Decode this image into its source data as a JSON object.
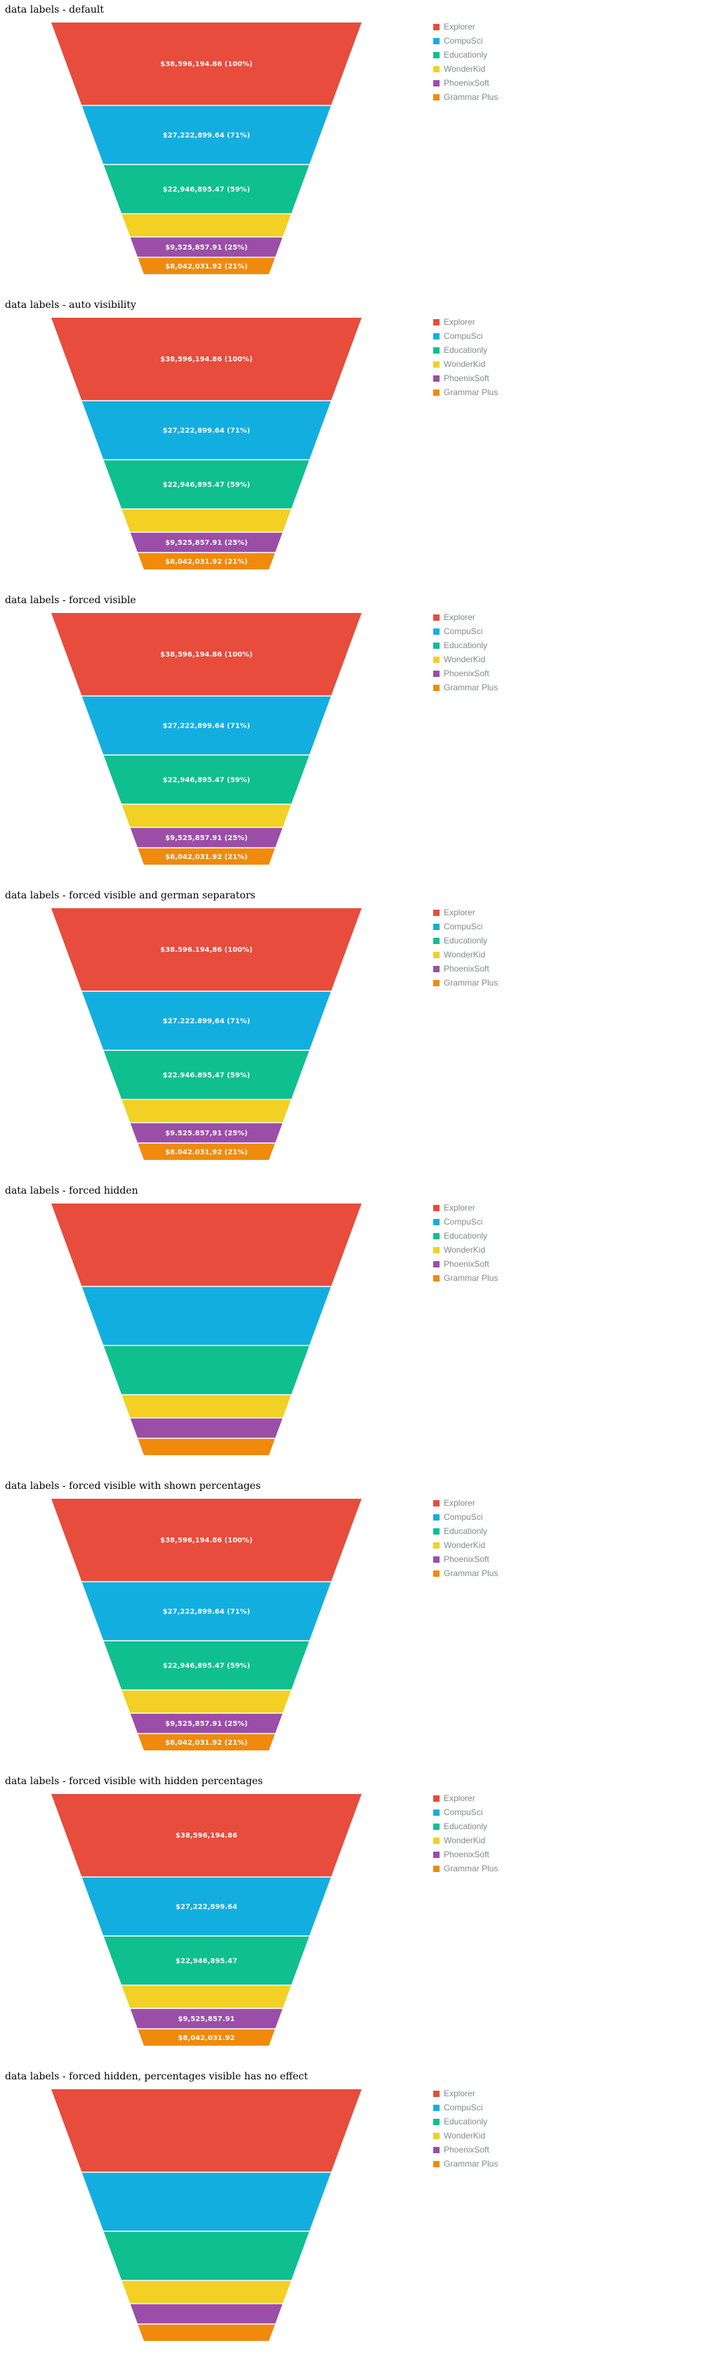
{
  "colors": [
    "#e74c3c",
    "#13aee0",
    "#0fbf8f",
    "#f2d024",
    "#9b4ea7",
    "#f08a0c"
  ],
  "label_color": "#f7f7f7",
  "chart_data": [
    {
      "type": "funnel",
      "title": "data labels - default",
      "labels_visible": true,
      "percentages_visible": true,
      "separators": "en",
      "categories": [
        "Explorer",
        "CompuSci",
        "Educationly",
        "WonderKid",
        "PhoenixSoft",
        "Grammar Plus"
      ],
      "values": [
        38596194.86,
        27222899.64,
        22946895.47,
        12150000,
        9525857.91,
        8042031.92
      ],
      "labels": [
        "$38,596,194.86 (100%)",
        "$27,222,899.64 (71%)",
        "$22,946,895.47 (59%)",
        "",
        "$9,525,857.91 (25%)",
        "$8,042,031.92 (21%)"
      ],
      "legend": [
        "Explorer",
        "CompuSci",
        "Educationly",
        "WonderKid",
        "PhoenixSoft",
        "Grammar Plus"
      ]
    },
    {
      "type": "funnel",
      "title": "data labels - auto visibility",
      "labels_visible": true,
      "percentages_visible": true,
      "separators": "en",
      "categories": [
        "Explorer",
        "CompuSci",
        "Educationly",
        "WonderKid",
        "PhoenixSoft",
        "Grammar Plus"
      ],
      "values": [
        38596194.86,
        27222899.64,
        22946895.47,
        12150000,
        9525857.91,
        8042031.92
      ],
      "labels": [
        "$38,596,194.86 (100%)",
        "$27,222,899.64 (71%)",
        "$22,946,895.47 (59%)",
        "",
        "$9,525,857.91 (25%)",
        "$8,042,031.92 (21%)"
      ],
      "legend": [
        "Explorer",
        "CompuSci",
        "Educationly",
        "WonderKid",
        "PhoenixSoft",
        "Grammar Plus"
      ]
    },
    {
      "type": "funnel",
      "title": "data labels - forced visible",
      "labels_visible": true,
      "percentages_visible": true,
      "separators": "en",
      "categories": [
        "Explorer",
        "CompuSci",
        "Educationly",
        "WonderKid",
        "PhoenixSoft",
        "Grammar Plus"
      ],
      "values": [
        38596194.86,
        27222899.64,
        22946895.47,
        12150000,
        9525857.91,
        8042031.92
      ],
      "labels": [
        "$38,596,194.86 (100%)",
        "$27,222,899.64 (71%)",
        "$22,946,895.47 (59%)",
        "",
        "$9,525,857.91 (25%)",
        "$8,042,031.92 (21%)"
      ],
      "legend": [
        "Explorer",
        "CompuSci",
        "Educationly",
        "WonderKid",
        "PhoenixSoft",
        "Grammar Plus"
      ]
    },
    {
      "type": "funnel",
      "title": "data labels - forced visible and german separators",
      "labels_visible": true,
      "percentages_visible": true,
      "separators": "de",
      "categories": [
        "Explorer",
        "CompuSci",
        "Educationly",
        "WonderKid",
        "PhoenixSoft",
        "Grammar Plus"
      ],
      "values": [
        38596194.86,
        27222899.64,
        22946895.47,
        12150000,
        9525857.91,
        8042031.92
      ],
      "labels": [
        "$38.596.194,86 (100%)",
        "$27.222.899,64 (71%)",
        "$22.946.895,47 (59%)",
        "",
        "$9.525.857,91 (25%)",
        "$8.042.031,92 (21%)"
      ],
      "legend": [
        "Explorer",
        "CompuSci",
        "Educationly",
        "WonderKid",
        "PhoenixSoft",
        "Grammar Plus"
      ]
    },
    {
      "type": "funnel",
      "title": "data labels - forced hidden",
      "labels_visible": false,
      "percentages_visible": true,
      "separators": "en",
      "categories": [
        "Explorer",
        "CompuSci",
        "Educationly",
        "WonderKid",
        "PhoenixSoft",
        "Grammar Plus"
      ],
      "values": [
        38596194.86,
        27222899.64,
        22946895.47,
        12150000,
        9525857.91,
        8042031.92
      ],
      "labels": [
        "",
        "",
        "",
        "",
        "",
        ""
      ],
      "legend": [
        "Explorer",
        "CompuSci",
        "Educationly",
        "WonderKid",
        "PhoenixSoft",
        "Grammar Plus"
      ]
    },
    {
      "type": "funnel",
      "title": "data labels - forced visible with shown percentages",
      "labels_visible": true,
      "percentages_visible": true,
      "separators": "en",
      "categories": [
        "Explorer",
        "CompuSci",
        "Educationly",
        "WonderKid",
        "PhoenixSoft",
        "Grammar Plus"
      ],
      "values": [
        38596194.86,
        27222899.64,
        22946895.47,
        12150000,
        9525857.91,
        8042031.92
      ],
      "labels": [
        "$38,596,194.86 (100%)",
        "$27,222,899.64 (71%)",
        "$22,946,895.47 (59%)",
        "",
        "$9,525,857.91 (25%)",
        "$8,042,031.92 (21%)"
      ],
      "legend": [
        "Explorer",
        "CompuSci",
        "Educationly",
        "WonderKid",
        "PhoenixSoft",
        "Grammar Plus"
      ]
    },
    {
      "type": "funnel",
      "title": "data labels - forced visible with hidden percentages",
      "labels_visible": true,
      "percentages_visible": false,
      "separators": "en",
      "categories": [
        "Explorer",
        "CompuSci",
        "Educationly",
        "WonderKid",
        "PhoenixSoft",
        "Grammar Plus"
      ],
      "values": [
        38596194.86,
        27222899.64,
        22946895.47,
        12150000,
        9525857.91,
        8042031.92
      ],
      "labels": [
        "$38,596,194.86",
        "$27,222,899.64",
        "$22,946,895.47",
        "",
        "$9,525,857.91",
        "$8,042,031.92"
      ],
      "legend": [
        "Explorer",
        "CompuSci",
        "Educationly",
        "WonderKid",
        "PhoenixSoft",
        "Grammar Plus"
      ]
    },
    {
      "type": "funnel",
      "title": "data labels - forced hidden, percentages visible has no effect",
      "labels_visible": false,
      "percentages_visible": true,
      "separators": "en",
      "categories": [
        "Explorer",
        "CompuSci",
        "Educationly",
        "WonderKid",
        "PhoenixSoft",
        "Grammar Plus"
      ],
      "values": [
        38596194.86,
        27222899.64,
        22946895.47,
        12150000,
        9525857.91,
        8042031.92
      ],
      "labels": [
        "",
        "",
        "",
        "",
        "",
        ""
      ],
      "legend": [
        "Explorer",
        "CompuSci",
        "Educationly",
        "WonderKid",
        "PhoenixSoft",
        "Grammar Plus"
      ]
    }
  ]
}
